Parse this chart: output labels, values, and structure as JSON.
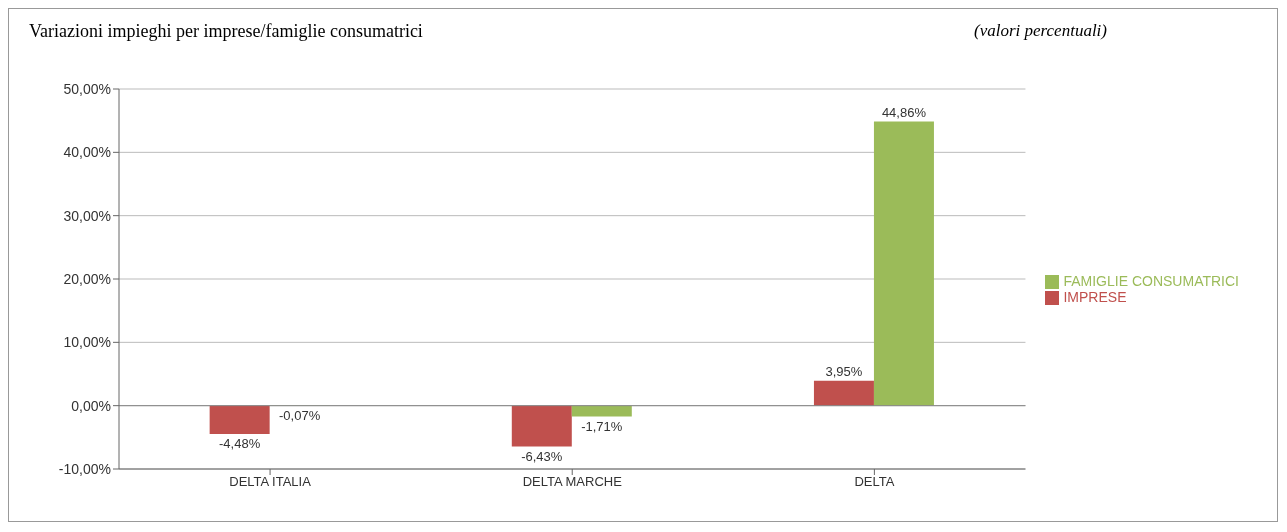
{
  "chart_data": {
    "type": "bar",
    "title": "Variazioni impieghi per imprese/famiglie consumatrici",
    "annotations": [
      "(valori percentuali)"
    ],
    "categories": [
      "DELTA ITALIA",
      "DELTA MARCHE",
      "DELTA"
    ],
    "series": [
      {
        "name": "IMPRESE",
        "color": "#c0504d",
        "values": [
          -4.48,
          -6.43,
          3.95
        ],
        "value_labels": [
          "-4,48%",
          "-6,43%",
          "3,95%"
        ]
      },
      {
        "name": "FAMIGLIE CONSUMATRICI",
        "color": "#9bbb59",
        "values": [
          -0.07,
          -1.71,
          44.86
        ],
        "value_labels": [
          "-0,07%",
          "-1,71%",
          "44,86%"
        ]
      }
    ],
    "ylim": [
      -10,
      50
    ],
    "yticks": [
      {
        "value": -10,
        "label": "-10,00%"
      },
      {
        "value": 0,
        "label": "0,00%"
      },
      {
        "value": 10,
        "label": "10,00%"
      },
      {
        "value": 20,
        "label": "20,00%"
      },
      {
        "value": 30,
        "label": "30,00%"
      },
      {
        "value": 40,
        "label": "40,00%"
      },
      {
        "value": 50,
        "label": "50,00%"
      }
    ],
    "grid": "y",
    "legend": "right"
  }
}
